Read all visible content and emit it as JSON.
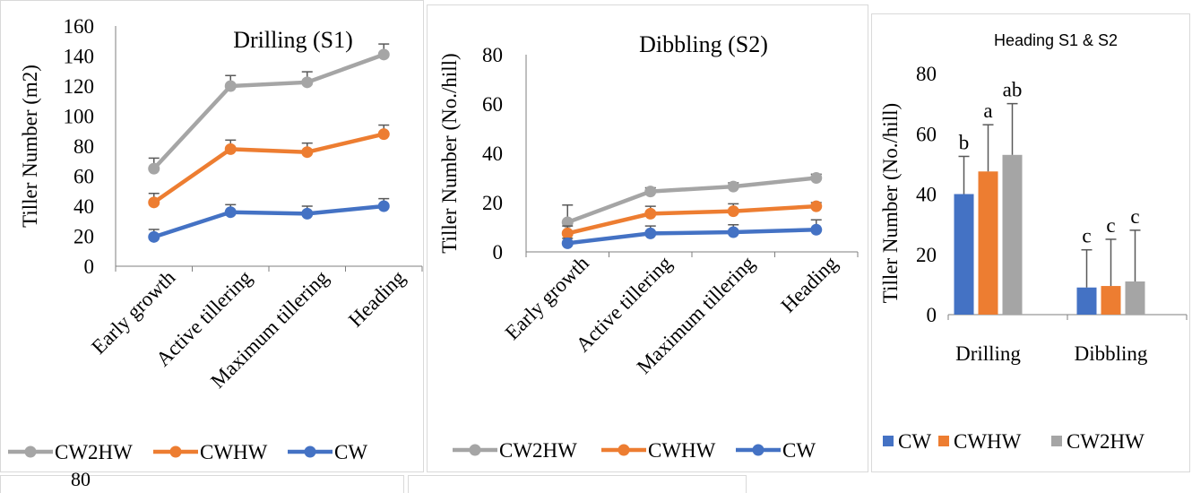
{
  "colors": {
    "CW": "#4472c4",
    "CWHW": "#ed7d31",
    "CW2HW": "#a5a5a5"
  },
  "charts": {
    "s1": {
      "title": "Drilling (S1)",
      "ylabel": "Tiller Number (m2)",
      "yticks": [
        "0",
        "20",
        "40",
        "60",
        "80",
        "100",
        "120",
        "140",
        "160"
      ],
      "categories": [
        "Early growth",
        "Active tillering",
        "Maximum tillering",
        "Heading"
      ],
      "legend": [
        "CW2HW",
        "CWHW",
        "CW"
      ]
    },
    "s2": {
      "title": "Dibbling (S2)",
      "ylabel": "Tiller Number (No./hill)",
      "yticks": [
        "0",
        "20",
        "40",
        "60",
        "80"
      ],
      "categories": [
        "Early growth",
        "Active tillering",
        "Maximum tillering",
        "Heading"
      ],
      "legend": [
        "CW2HW",
        "CWHW",
        "CW"
      ]
    },
    "bar": {
      "title": "Heading S1 & S2",
      "ylabel": "Tiller Number (No./hill)",
      "yticks": [
        "0",
        "20",
        "40",
        "60",
        "80"
      ],
      "categories": [
        "Drilling",
        "Dibbling"
      ],
      "legend": [
        "CW",
        "CWHW",
        "CW2HW"
      ],
      "letters": [
        "b",
        "a",
        "ab",
        "c",
        "c",
        "c"
      ]
    }
  },
  "bottom": {
    "partial_tick": "80"
  },
  "chart_data": [
    {
      "type": "line",
      "title": "Drilling (S1)",
      "xlabel": "",
      "ylabel": "Tiller Number (m2)",
      "ylim": [
        0,
        160
      ],
      "categories": [
        "Early growth",
        "Active tillering",
        "Maximum tillering",
        "Heading"
      ],
      "series": [
        {
          "name": "CW2HW",
          "values": [
            65,
            120,
            122.5,
            141
          ],
          "errors": [
            7,
            7,
            7,
            7
          ]
        },
        {
          "name": "CWHW",
          "values": [
            42.5,
            78,
            76,
            88
          ],
          "errors": [
            6,
            6,
            6,
            6
          ]
        },
        {
          "name": "CW",
          "values": [
            19.5,
            36,
            35,
            40
          ],
          "errors": [
            5,
            5,
            5,
            5
          ]
        }
      ],
      "legend_position": "bottom"
    },
    {
      "type": "line",
      "title": "Dibbling (S2)",
      "xlabel": "",
      "ylabel": "Tiller Number (No./hill)",
      "ylim": [
        0,
        80
      ],
      "categories": [
        "Early growth",
        "Active tillering",
        "Maximum tillering",
        "Heading"
      ],
      "series": [
        {
          "name": "CW2HW",
          "values": [
            12,
            24.5,
            26.5,
            30
          ],
          "errors": [
            7,
            1.5,
            1.5,
            1.5
          ]
        },
        {
          "name": "CWHW",
          "values": [
            7.5,
            15.5,
            16.5,
            18.5
          ],
          "errors": [
            3,
            3,
            3,
            1.5
          ]
        },
        {
          "name": "CW",
          "values": [
            3.5,
            7.5,
            8,
            9
          ],
          "errors": [
            2,
            3,
            3,
            4
          ]
        }
      ],
      "legend_position": "bottom"
    },
    {
      "type": "bar",
      "title": "Heading S1 & S2",
      "xlabel": "",
      "ylabel": "Tiller Number (No./hill)",
      "ylim": [
        0,
        80
      ],
      "categories": [
        "Drilling",
        "Dibbling"
      ],
      "series": [
        {
          "name": "CW",
          "values": [
            40,
            9
          ],
          "errors": [
            12.5,
            12.5
          ]
        },
        {
          "name": "CWHW",
          "values": [
            47.5,
            9.5
          ],
          "errors": [
            15.5,
            15.5
          ]
        },
        {
          "name": "CW2HW",
          "values": [
            53,
            11
          ],
          "errors": [
            17,
            17
          ]
        }
      ],
      "labels": [
        [
          "b",
          "c"
        ],
        [
          "a",
          "c"
        ],
        [
          "ab",
          "c"
        ]
      ],
      "legend_position": "bottom"
    }
  ]
}
